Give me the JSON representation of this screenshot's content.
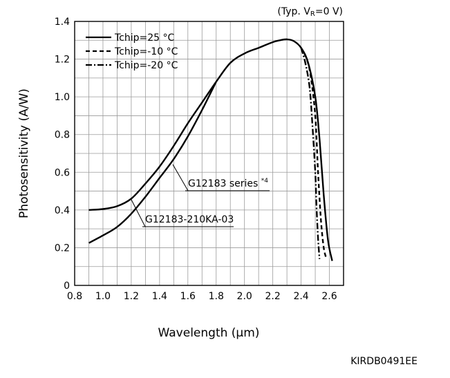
{
  "chart_data": {
    "type": "line",
    "condition": {
      "prefix": "(Typ. V",
      "sub": "R",
      "suffix": "=0 V)"
    },
    "xlabel": "Wavelength (µm)",
    "ylabel": "Photosensitivity (A/W)",
    "xlim": [
      0.8,
      2.7
    ],
    "ylim": [
      0,
      1.4
    ],
    "xticks": [
      {
        "v": 0.8,
        "label": "0.8"
      },
      {
        "v": 1.0,
        "label": "1.0"
      },
      {
        "v": 1.2,
        "label": "1.2"
      },
      {
        "v": 1.4,
        "label": "1.4"
      },
      {
        "v": 1.6,
        "label": "1.6"
      },
      {
        "v": 1.8,
        "label": "1.8"
      },
      {
        "v": 2.0,
        "label": "2.0"
      },
      {
        "v": 2.2,
        "label": "2.2"
      },
      {
        "v": 2.4,
        "label": "2.4"
      },
      {
        "v": 2.6,
        "label": "2.6"
      }
    ],
    "yticks": [
      {
        "v": 0,
        "label": "0"
      },
      {
        "v": 0.2,
        "label": "0.2"
      },
      {
        "v": 0.4,
        "label": "0.4"
      },
      {
        "v": 0.6,
        "label": "0.6"
      },
      {
        "v": 0.8,
        "label": "0.8"
      },
      {
        "v": 1.0,
        "label": "1.0"
      },
      {
        "v": 1.2,
        "label": "1.2"
      },
      {
        "v": 1.4,
        "label": "1.4"
      }
    ],
    "grid": true,
    "legend_position": "top-left",
    "series": [
      {
        "name": "Tchip=25 °C",
        "group": "G12183 series",
        "dash": "solid",
        "x": [
          0.9,
          1.0,
          1.1,
          1.2,
          1.3,
          1.4,
          1.5,
          1.6,
          1.7,
          1.8,
          1.9,
          2.0,
          2.1,
          2.2,
          2.25,
          2.3,
          2.35,
          2.4,
          2.45,
          2.5,
          2.53,
          2.56,
          2.59,
          2.62
        ],
        "y": [
          0.4,
          0.405,
          0.42,
          0.46,
          0.54,
          0.63,
          0.74,
          0.86,
          0.97,
          1.08,
          1.18,
          1.23,
          1.26,
          1.29,
          1.3,
          1.305,
          1.295,
          1.26,
          1.18,
          1.0,
          0.78,
          0.48,
          0.24,
          0.13
        ]
      },
      {
        "name": "Tchip=25 °C",
        "group": "G12183-210KA-03",
        "dash": "solid",
        "x": [
          0.9,
          1.0,
          1.1,
          1.2,
          1.3,
          1.4,
          1.5,
          1.6,
          1.7,
          1.8
        ],
        "y": [
          0.225,
          0.265,
          0.31,
          0.38,
          0.47,
          0.57,
          0.67,
          0.79,
          0.93,
          1.08
        ]
      },
      {
        "name": "Tchip=-10 °C",
        "group": "G12183 series",
        "dash": "dashed",
        "x": [
          2.4,
          2.44,
          2.47,
          2.5,
          2.52,
          2.54,
          2.56,
          2.58
        ],
        "y": [
          1.26,
          1.2,
          1.1,
          0.9,
          0.6,
          0.35,
          0.2,
          0.14
        ]
      },
      {
        "name": "Tchip=-20 °C",
        "group": "G12183 series",
        "dash": "dashdot",
        "x": [
          2.4,
          2.43,
          2.46,
          2.48,
          2.5,
          2.51,
          2.52,
          2.53
        ],
        "y": [
          1.26,
          1.18,
          1.05,
          0.85,
          0.6,
          0.4,
          0.25,
          0.14
        ]
      }
    ],
    "annotations": [
      {
        "text": "G12183 series *4",
        "main": "G12183 series ",
        "sup": "*4",
        "point": [
          1.5,
          0.69
        ],
        "label_at": [
          1.65,
          0.56
        ]
      },
      {
        "text": "G12183-210KA-03",
        "point": [
          1.2,
          0.46
        ],
        "label_at": [
          1.3,
          0.335
        ]
      }
    ]
  },
  "figure_code": "KIRDB0491EE"
}
